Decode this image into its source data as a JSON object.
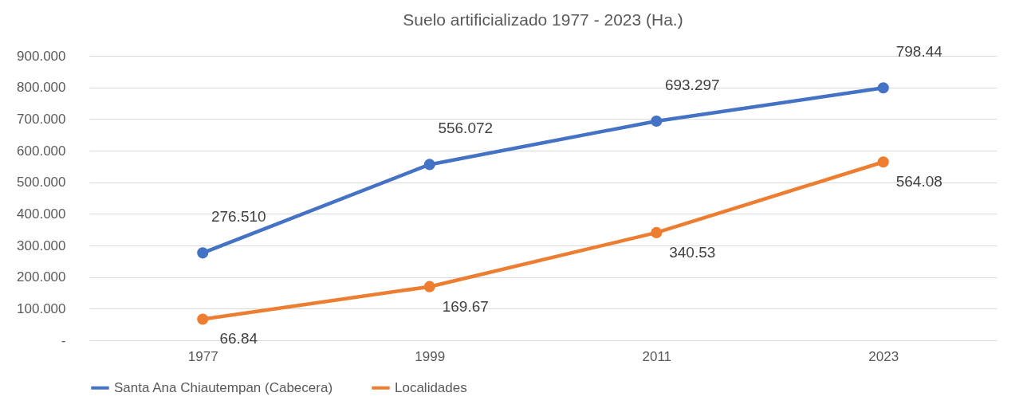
{
  "chart_data": {
    "type": "line",
    "title": "Suelo artificializado 1977 - 2023 (Ha.)",
    "categories": [
      "1977",
      "1999",
      "2011",
      "2023"
    ],
    "series": [
      {
        "name": "Santa Ana Chiautempan (Cabecera)",
        "color": "#4472c4",
        "values": [
          276.51,
          556.072,
          693.297,
          798.44
        ],
        "value_labels": [
          "276.510",
          "556.072",
          "693.297",
          "798.44"
        ]
      },
      {
        "name": "Localidades",
        "color": "#ed7d31",
        "values": [
          66.84,
          169.67,
          340.53,
          564.08
        ],
        "value_labels": [
          "66.84",
          "169.67",
          "340.53",
          "564.08"
        ]
      }
    ],
    "ylim": [
      0,
      900
    ],
    "yticks": [
      {
        "value": 0,
        "label": "-"
      },
      {
        "value": 100,
        "label": "100.000"
      },
      {
        "value": 200,
        "label": "200.000"
      },
      {
        "value": 300,
        "label": "300.000"
      },
      {
        "value": 400,
        "label": "400.000"
      },
      {
        "value": 500,
        "label": "500.000"
      },
      {
        "value": 600,
        "label": "600.000"
      },
      {
        "value": 700,
        "label": "700.000"
      },
      {
        "value": 800,
        "label": "800.000"
      },
      {
        "value": 900,
        "label": "900.000"
      }
    ],
    "grid": "y",
    "legend": "bottom",
    "marker": "circle",
    "line_style": "solid"
  }
}
